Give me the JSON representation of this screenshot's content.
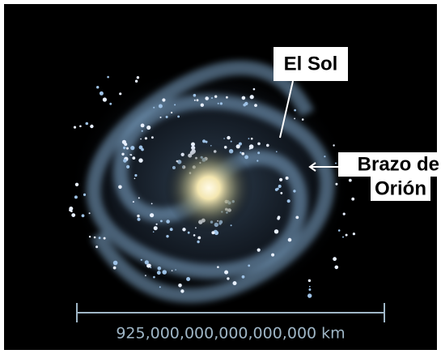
{
  "labels": {
    "sun": "El Sol",
    "arm_line1": "Brazo de",
    "arm_line2": "Orión"
  },
  "scale": {
    "label": "925,000,000,000,000,000 km"
  }
}
